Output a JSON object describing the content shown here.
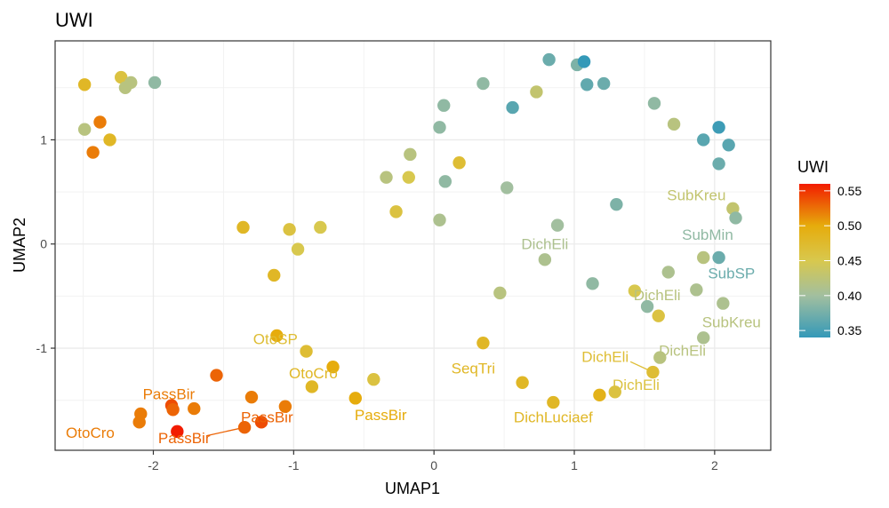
{
  "chart_data": {
    "type": "scatter",
    "title": "UWI",
    "xlabel": "UMAP1",
    "ylabel": "UMAP2",
    "xlim": [
      -2.7,
      2.4
    ],
    "ylim": [
      -1.98,
      1.95
    ],
    "xticks": [
      -2,
      -1,
      0,
      1,
      2
    ],
    "yticks": [
      -1,
      0,
      1
    ],
    "grid": true,
    "legend": {
      "title": "UWI",
      "type": "colorbar",
      "position": "right",
      "range": [
        0.34,
        0.56
      ],
      "ticks": [
        0.35,
        0.4,
        0.45,
        0.5,
        0.55
      ],
      "tick_labels": [
        "0.35",
        "0.40",
        "0.45",
        "0.50",
        "0.55"
      ],
      "gradient": [
        {
          "value": 0.34,
          "color": "#3499B8"
        },
        {
          "value": 0.4,
          "color": "#A2BF9F"
        },
        {
          "value": 0.45,
          "color": "#D8C84E"
        },
        {
          "value": 0.5,
          "color": "#E6AC0C"
        },
        {
          "value": 0.56,
          "color": "#F21C00"
        }
      ]
    },
    "points": [
      {
        "x": -2.49,
        "y": 1.53,
        "uwi": 0.48
      },
      {
        "x": -2.23,
        "y": 1.6,
        "uwi": 0.46
      },
      {
        "x": -2.16,
        "y": 1.55,
        "uwi": 0.42
      },
      {
        "x": -2.2,
        "y": 1.5,
        "uwi": 0.42
      },
      {
        "x": -1.99,
        "y": 1.55,
        "uwi": 0.39
      },
      {
        "x": -2.38,
        "y": 1.17,
        "uwi": 0.52
      },
      {
        "x": -2.49,
        "y": 1.1,
        "uwi": 0.42
      },
      {
        "x": -2.31,
        "y": 1.0,
        "uwi": 0.48
      },
      {
        "x": -2.43,
        "y": 0.88,
        "uwi": 0.52
      },
      {
        "x": -1.36,
        "y": 0.16,
        "uwi": 0.48
      },
      {
        "x": -1.03,
        "y": 0.14,
        "uwi": 0.46
      },
      {
        "x": -0.81,
        "y": 0.16,
        "uwi": 0.45
      },
      {
        "x": -0.97,
        "y": -0.05,
        "uwi": 0.45
      },
      {
        "x": -1.14,
        "y": -0.3,
        "uwi": 0.48
      },
      {
        "x": -0.17,
        "y": 0.86,
        "uwi": 0.42
      },
      {
        "x": -0.34,
        "y": 0.64,
        "uwi": 0.42
      },
      {
        "x": -0.18,
        "y": 0.64,
        "uwi": 0.45
      },
      {
        "x": -0.27,
        "y": 0.31,
        "uwi": 0.46
      },
      {
        "x": 0.04,
        "y": 0.23,
        "uwi": 0.41
      },
      {
        "x": 0.08,
        "y": 0.6,
        "uwi": 0.39
      },
      {
        "x": 0.18,
        "y": 0.78,
        "uwi": 0.47
      },
      {
        "x": 0.04,
        "y": 1.12,
        "uwi": 0.39
      },
      {
        "x": 0.07,
        "y": 1.33,
        "uwi": 0.39
      },
      {
        "x": 0.35,
        "y": 1.54,
        "uwi": 0.39
      },
      {
        "x": 0.56,
        "y": 1.31,
        "uwi": 0.36
      },
      {
        "x": 0.73,
        "y": 1.46,
        "uwi": 0.43
      },
      {
        "x": 0.82,
        "y": 1.77,
        "uwi": 0.37
      },
      {
        "x": 1.02,
        "y": 1.72,
        "uwi": 0.38
      },
      {
        "x": 1.07,
        "y": 1.75,
        "uwi": 0.34
      },
      {
        "x": 1.09,
        "y": 1.53,
        "uwi": 0.365
      },
      {
        "x": 1.21,
        "y": 1.54,
        "uwi": 0.37
      },
      {
        "x": 0.52,
        "y": 0.54,
        "uwi": 0.4
      },
      {
        "x": 1.3,
        "y": 0.38,
        "uwi": 0.38
      },
      {
        "x": 1.57,
        "y": 1.35,
        "uwi": 0.39
      },
      {
        "x": 1.71,
        "y": 1.15,
        "uwi": 0.42
      },
      {
        "x": 1.92,
        "y": 1.0,
        "uwi": 0.36
      },
      {
        "x": 2.03,
        "y": 1.12,
        "uwi": 0.345
      },
      {
        "x": 2.1,
        "y": 0.95,
        "uwi": 0.36
      },
      {
        "x": 2.03,
        "y": 0.77,
        "uwi": 0.37
      },
      {
        "x": 2.13,
        "y": 0.34,
        "uwi": 0.43,
        "label": "SubKreu"
      },
      {
        "x": 2.15,
        "y": 0.25,
        "uwi": 0.39,
        "label": "SubMin"
      },
      {
        "x": 2.03,
        "y": -0.13,
        "uwi": 0.37,
        "label": "SubSP"
      },
      {
        "x": 0.88,
        "y": 0.18,
        "uwi": 0.4
      },
      {
        "x": 0.79,
        "y": -0.15,
        "uwi": 0.41,
        "label": "DichEli"
      },
      {
        "x": 1.13,
        "y": -0.38,
        "uwi": 0.39
      },
      {
        "x": 0.47,
        "y": -0.47,
        "uwi": 0.42
      },
      {
        "x": 1.67,
        "y": -0.27,
        "uwi": 0.41
      },
      {
        "x": 1.92,
        "y": -0.13,
        "uwi": 0.42
      },
      {
        "x": 1.43,
        "y": -0.45,
        "uwi": 0.45
      },
      {
        "x": 1.87,
        "y": -0.44,
        "uwi": 0.41
      },
      {
        "x": 1.52,
        "y": -0.6,
        "uwi": 0.39
      },
      {
        "x": 1.6,
        "y": -0.69,
        "uwi": 0.46,
        "label": "DichEli"
      },
      {
        "x": 2.06,
        "y": -0.57,
        "uwi": 0.41
      },
      {
        "x": 1.92,
        "y": -0.9,
        "uwi": 0.41,
        "label": "SubKreu"
      },
      {
        "x": 1.61,
        "y": -1.09,
        "uwi": 0.42,
        "label": "DichEli"
      },
      {
        "x": 1.56,
        "y": -1.23,
        "uwi": 0.47,
        "label": "DichEli"
      },
      {
        "x": 1.29,
        "y": -1.42,
        "uwi": 0.46,
        "label": "DichEli"
      },
      {
        "x": 1.18,
        "y": -1.45,
        "uwi": 0.49
      },
      {
        "x": 0.85,
        "y": -1.52,
        "uwi": 0.48,
        "label": "DichLuciaef"
      },
      {
        "x": 0.63,
        "y": -1.33,
        "uwi": 0.48
      },
      {
        "x": 0.35,
        "y": -0.95,
        "uwi": 0.48,
        "label": "SeqTri"
      },
      {
        "x": -1.12,
        "y": -0.88,
        "uwi": 0.5,
        "label": "OtoSP"
      },
      {
        "x": -0.91,
        "y": -1.03,
        "uwi": 0.47
      },
      {
        "x": -0.72,
        "y": -1.18,
        "uwi": 0.5,
        "label": "OtoCro"
      },
      {
        "x": -0.87,
        "y": -1.37,
        "uwi": 0.48
      },
      {
        "x": -0.43,
        "y": -1.3,
        "uwi": 0.46
      },
      {
        "x": -0.56,
        "y": -1.48,
        "uwi": 0.5,
        "label": "PassBir"
      },
      {
        "x": -1.06,
        "y": -1.56,
        "uwi": 0.52
      },
      {
        "x": -1.3,
        "y": -1.47,
        "uwi": 0.52
      },
      {
        "x": -1.55,
        "y": -1.26,
        "uwi": 0.53
      },
      {
        "x": -1.87,
        "y": -1.55,
        "uwi": 0.54
      },
      {
        "x": -1.86,
        "y": -1.59,
        "uwi": 0.53,
        "label": "PassBir"
      },
      {
        "x": -1.71,
        "y": -1.58,
        "uwi": 0.52
      },
      {
        "x": -2.09,
        "y": -1.63,
        "uwi": 0.52
      },
      {
        "x": -2.1,
        "y": -1.71,
        "uwi": 0.52,
        "label": "OtoCro"
      },
      {
        "x": -1.83,
        "y": -1.8,
        "uwi": 0.56,
        "label": "PassBir"
      },
      {
        "x": -1.35,
        "y": -1.76,
        "uwi": 0.53
      },
      {
        "x": -1.23,
        "y": -1.71,
        "uwi": 0.54,
        "label": "PassBir"
      }
    ],
    "annotations": [
      {
        "text": "SubKreu",
        "x": 1.87,
        "y": 0.47,
        "uwi": 0.43
      },
      {
        "text": "SubMin",
        "x": 1.95,
        "y": 0.09,
        "uwi": 0.39
      },
      {
        "text": "SubSP",
        "x": 2.12,
        "y": -0.28,
        "uwi": 0.37
      },
      {
        "text": "DichEli",
        "x": 0.79,
        "y": 0.0,
        "uwi": 0.41
      },
      {
        "text": "DichEli",
        "x": 1.59,
        "y": -0.49,
        "uwi": 0.42
      },
      {
        "text": "SubKreu",
        "x": 2.12,
        "y": -0.75,
        "uwi": 0.42
      },
      {
        "text": "DichEli",
        "x": 1.77,
        "y": -1.02,
        "uwi": 0.42
      },
      {
        "text": "DichEli",
        "x": 1.22,
        "y": -1.08,
        "uwi": 0.47
      },
      {
        "text": "DichEli",
        "x": 1.44,
        "y": -1.35,
        "uwi": 0.46
      },
      {
        "text": "DichLuciaef",
        "x": 0.85,
        "y": -1.66,
        "uwi": 0.48
      },
      {
        "text": "SeqTri",
        "x": 0.28,
        "y": -1.19,
        "uwi": 0.48
      },
      {
        "text": "OtoSP",
        "x": -1.13,
        "y": -0.91,
        "uwi": 0.47
      },
      {
        "text": "OtoCro",
        "x": -0.86,
        "y": -1.24,
        "uwi": 0.48
      },
      {
        "text": "PassBir",
        "x": -0.38,
        "y": -1.64,
        "uwi": 0.5
      },
      {
        "text": "PassBir",
        "x": -1.89,
        "y": -1.44,
        "uwi": 0.52
      },
      {
        "text": "OtoCro",
        "x": -2.45,
        "y": -1.81,
        "uwi": 0.52
      },
      {
        "text": "PassBir",
        "x": -1.78,
        "y": -1.86,
        "uwi": 0.53
      },
      {
        "text": "PassBir",
        "x": -1.19,
        "y": -1.66,
        "uwi": 0.53
      }
    ],
    "leader_lines": [
      {
        "from": [
          -1.62,
          -1.84
        ],
        "to": [
          -1.35,
          -1.76
        ]
      },
      {
        "from": [
          1.4,
          -1.13
        ],
        "to": [
          1.56,
          -1.23
        ]
      }
    ]
  }
}
